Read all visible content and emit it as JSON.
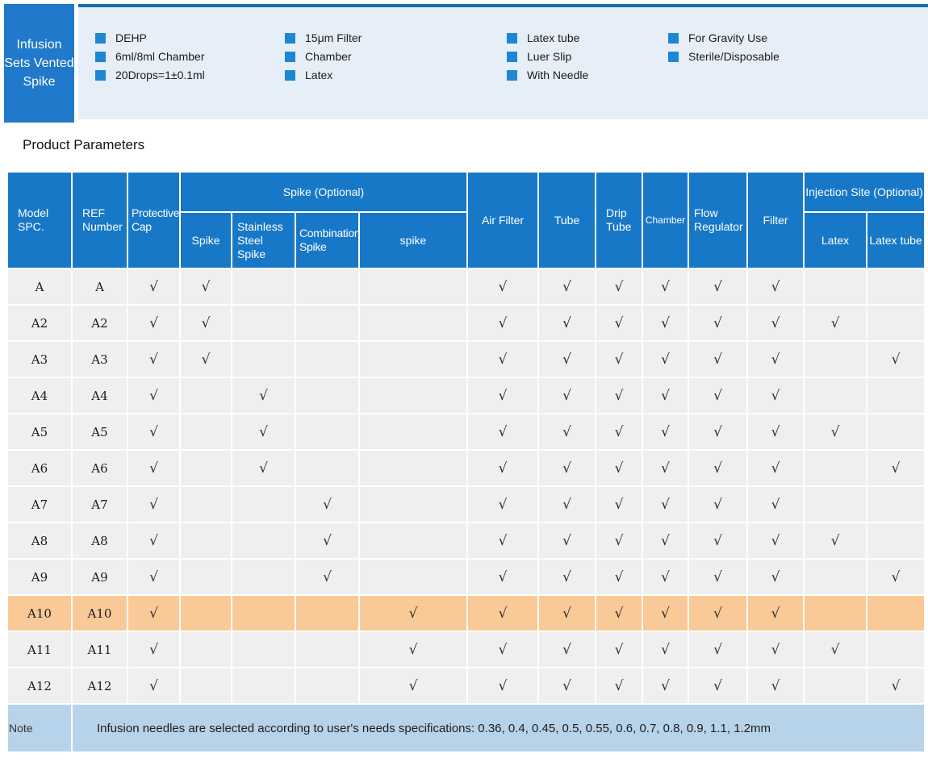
{
  "banner": {
    "title": "Infusion Sets Vented Spike",
    "feature_columns": [
      {
        "items": [
          "DEHP",
          "6ml/8ml Chamber",
          "20Drops=1±0.1ml"
        ]
      },
      {
        "items": [
          "15μm Filter",
          "Chamber",
          "Latex"
        ]
      },
      {
        "items": [
          "Latex tube",
          "Luer Slip",
          "With Needle"
        ]
      },
      {
        "items": [
          "For Gravity Use",
          "Sterile/Disposable"
        ]
      }
    ]
  },
  "section": {
    "title": "Product Parameters"
  },
  "table": {
    "headers": {
      "model": "Model SPC.",
      "ref": "REF Number",
      "protective_cap": "Protective Cap",
      "spike_group": "Spike (Optional)",
      "spike": "Spike",
      "stainless": "Stainless Steel Spike",
      "combination": "Combination Spike",
      "spike_lower": "spike",
      "air_filter": "Air Filter",
      "tube": "Tube",
      "drip_tube": "Drip Tube",
      "chamber": "Chamber",
      "flow_regulator": "Flow Regulator",
      "filter": "Filter",
      "injection_group": "Injection Site (Optional)",
      "latex": "Latex",
      "latex_tube": "Latex tube"
    },
    "check_mark": "√",
    "rows": [
      {
        "model": "A",
        "ref": "A",
        "highlight": false,
        "checks": [
          1,
          1,
          0,
          0,
          0,
          1,
          1,
          1,
          1,
          1,
          1,
          0,
          0
        ]
      },
      {
        "model": "A2",
        "ref": "A2",
        "highlight": false,
        "checks": [
          1,
          1,
          0,
          0,
          0,
          1,
          1,
          1,
          1,
          1,
          1,
          1,
          0
        ]
      },
      {
        "model": "A3",
        "ref": "A3",
        "highlight": false,
        "checks": [
          1,
          1,
          0,
          0,
          0,
          1,
          1,
          1,
          1,
          1,
          1,
          0,
          1
        ]
      },
      {
        "model": "A4",
        "ref": "A4",
        "highlight": false,
        "checks": [
          1,
          0,
          1,
          0,
          0,
          1,
          1,
          1,
          1,
          1,
          1,
          0,
          0
        ]
      },
      {
        "model": "A5",
        "ref": "A5",
        "highlight": false,
        "checks": [
          1,
          0,
          1,
          0,
          0,
          1,
          1,
          1,
          1,
          1,
          1,
          1,
          0
        ]
      },
      {
        "model": "A6",
        "ref": "A6",
        "highlight": false,
        "checks": [
          1,
          0,
          1,
          0,
          0,
          1,
          1,
          1,
          1,
          1,
          1,
          0,
          1
        ]
      },
      {
        "model": "A7",
        "ref": "A7",
        "highlight": false,
        "checks": [
          1,
          0,
          0,
          1,
          0,
          1,
          1,
          1,
          1,
          1,
          1,
          0,
          0
        ]
      },
      {
        "model": "A8",
        "ref": "A8",
        "highlight": false,
        "checks": [
          1,
          0,
          0,
          1,
          0,
          1,
          1,
          1,
          1,
          1,
          1,
          1,
          0
        ]
      },
      {
        "model": "A9",
        "ref": "A9",
        "highlight": false,
        "checks": [
          1,
          0,
          0,
          1,
          0,
          1,
          1,
          1,
          1,
          1,
          1,
          0,
          1
        ]
      },
      {
        "model": "A10",
        "ref": "A10",
        "highlight": true,
        "checks": [
          1,
          0,
          0,
          0,
          1,
          1,
          1,
          1,
          1,
          1,
          1,
          0,
          0
        ]
      },
      {
        "model": "A11",
        "ref": "A11",
        "highlight": false,
        "checks": [
          1,
          0,
          0,
          0,
          1,
          1,
          1,
          1,
          1,
          1,
          1,
          1,
          0
        ]
      },
      {
        "model": "A12",
        "ref": "A12",
        "highlight": false,
        "checks": [
          1,
          0,
          0,
          0,
          1,
          1,
          1,
          1,
          1,
          1,
          1,
          0,
          1
        ]
      }
    ],
    "note": {
      "label": "Note",
      "text": "Infusion needles are selected according to user's needs specifications: 0.36, 0.4, 0.45, 0.5, 0.55, 0.6, 0.7, 0.8, 0.9, 1.1, 1.2mm"
    }
  },
  "colors": {
    "header_blue": "#1778c8",
    "banner_box_blue": "#2079ca",
    "bullet_blue": "#1e87d3",
    "panel_bg": "#e6eff8",
    "panel_top_line": "#166cb4",
    "row_gray": "#efefef",
    "highlight_orange": "#f9c997",
    "note_bg": "#b7d3e9"
  }
}
